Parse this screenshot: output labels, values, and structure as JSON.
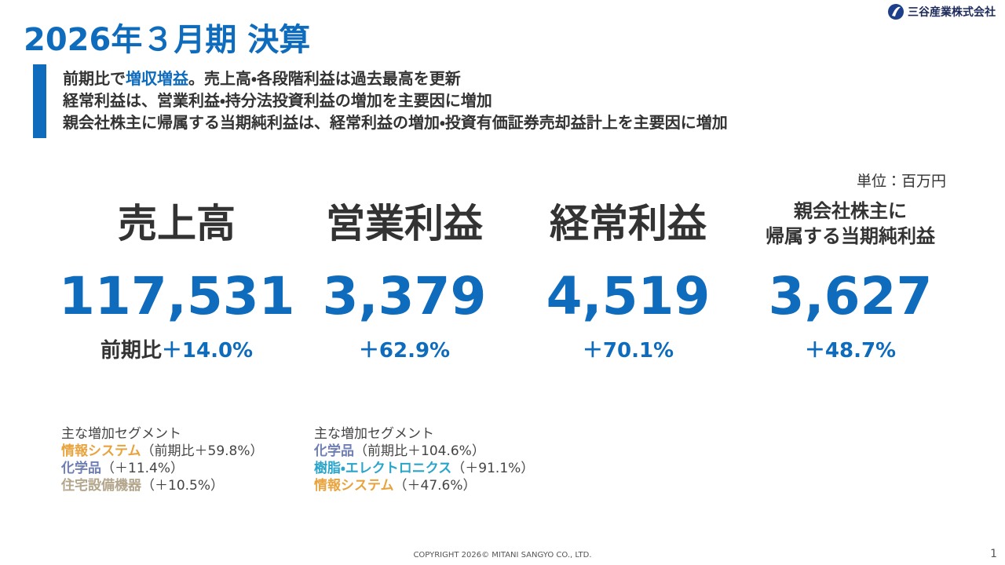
{
  "header": {
    "title": "2026年３月期 決算",
    "company": "三谷産業株式会社"
  },
  "summary": {
    "lines": [
      {
        "parts": [
          {
            "text": "前期比で"
          },
          {
            "text": "増収増益",
            "highlight": true
          },
          {
            "text": "。売上高・各段階利益は過去最高を更新"
          }
        ]
      },
      {
        "parts": [
          {
            "text": "経常利益は、営業利益・持分法投資利益の増加を主要因に増加"
          }
        ]
      },
      {
        "parts": [
          {
            "text": "親会社株主に帰属する当期純利益は、経常利益の増加・投資有価証券売却益計上を主要因に増加"
          }
        ]
      }
    ]
  },
  "unit": "単位：百万円",
  "metrics": [
    {
      "label": [
        "売上高"
      ],
      "value": "117,531",
      "change_prefix": "前期比",
      "change": "＋14.0%"
    },
    {
      "label": [
        "営業利益"
      ],
      "value": "3,379",
      "change": "＋62.9%"
    },
    {
      "label": [
        "経常利益"
      ],
      "value": "4,519",
      "change": "＋70.1%"
    },
    {
      "label": [
        "親会社株主に",
        "帰属する当期純利益"
      ],
      "value": "3,627",
      "change": "＋48.7%"
    }
  ],
  "segments": [
    {
      "heading": "主な増加セグメント",
      "items": [
        {
          "name": "情報システム",
          "color": "#e8a33d",
          "note": "（前期比＋59.8%）"
        },
        {
          "name": "化学品",
          "color": "#6f7fb5",
          "note": "（＋11.4%）"
        },
        {
          "name": "住宅設備機器",
          "color": "#b3a68c",
          "note": "（＋10.5%）"
        }
      ]
    },
    {
      "heading": "主な増加セグメント",
      "items": [
        {
          "name": "化学品",
          "color": "#6f7fb5",
          "note": "（前期比＋104.6%）"
        },
        {
          "name": "樹脂・エレクトロニクス",
          "color": "#2aa5c9",
          "note": "（＋91.1%）"
        },
        {
          "name": "情報システム",
          "color": "#e8a33d",
          "note": "（＋47.6%）"
        }
      ]
    }
  ],
  "footer": {
    "copyright": "COPYRIGHT 2026© MITANI SANGYO CO., LTD.",
    "page": "1"
  }
}
